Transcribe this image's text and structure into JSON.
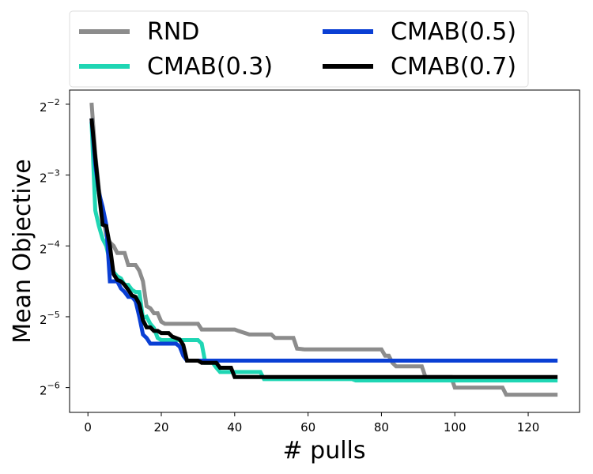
{
  "chart_data": {
    "type": "line",
    "title": "",
    "xlabel": "# pulls",
    "ylabel": "Mean Objective",
    "xlim": [
      -5,
      134
    ],
    "ylim_log2": [
      -6.35,
      -1.8
    ],
    "y_scale": "log2",
    "grid": false,
    "legend_position": "top",
    "x_ticks": [
      0,
      20,
      40,
      60,
      80,
      100,
      120
    ],
    "y_ticks": [
      {
        "base": "2",
        "exp": "−2",
        "log2": -2
      },
      {
        "base": "2",
        "exp": "−3",
        "log2": -3
      },
      {
        "base": "2",
        "exp": "−4",
        "log2": -4
      },
      {
        "base": "2",
        "exp": "−5",
        "log2": -5
      },
      {
        "base": "2",
        "exp": "−6",
        "log2": -6
      }
    ],
    "series": [
      {
        "name": "RND",
        "color": "#8c8c8c",
        "points_log2": [
          [
            1,
            -1.98
          ],
          [
            2,
            -2.7
          ],
          [
            3,
            -3.2
          ],
          [
            4,
            -3.55
          ],
          [
            5,
            -3.85
          ],
          [
            6,
            -3.95
          ],
          [
            7,
            -4.0
          ],
          [
            8,
            -4.1
          ],
          [
            10,
            -4.1
          ],
          [
            11,
            -4.27
          ],
          [
            13,
            -4.27
          ],
          [
            14,
            -4.35
          ],
          [
            15,
            -4.5
          ],
          [
            16,
            -4.85
          ],
          [
            17,
            -4.88
          ],
          [
            18,
            -4.95
          ],
          [
            19,
            -4.95
          ],
          [
            20,
            -5.07
          ],
          [
            21,
            -5.1
          ],
          [
            30,
            -5.1
          ],
          [
            31,
            -5.18
          ],
          [
            40,
            -5.18
          ],
          [
            41,
            -5.2
          ],
          [
            44,
            -5.25
          ],
          [
            50,
            -5.25
          ],
          [
            51,
            -5.3
          ],
          [
            56,
            -5.3
          ],
          [
            57,
            -5.45
          ],
          [
            59,
            -5.46
          ],
          [
            80,
            -5.46
          ],
          [
            81,
            -5.55
          ],
          [
            82,
            -5.55
          ],
          [
            83,
            -5.65
          ],
          [
            84,
            -5.7
          ],
          [
            91,
            -5.7
          ],
          [
            92,
            -5.85
          ],
          [
            99,
            -5.85
          ],
          [
            100,
            -6.0
          ],
          [
            113,
            -6.0
          ],
          [
            114,
            -6.1
          ],
          [
            128,
            -6.1
          ]
        ]
      },
      {
        "name": "CMAB(0.3)",
        "color": "#1fd6b4",
        "points_log2": [
          [
            1,
            -2.25
          ],
          [
            2,
            -3.5
          ],
          [
            3,
            -3.72
          ],
          [
            4,
            -3.9
          ],
          [
            5,
            -4.0
          ],
          [
            6,
            -4.22
          ],
          [
            7,
            -4.37
          ],
          [
            8,
            -4.43
          ],
          [
            9,
            -4.46
          ],
          [
            10,
            -4.55
          ],
          [
            11,
            -4.55
          ],
          [
            12,
            -4.62
          ],
          [
            13,
            -4.65
          ],
          [
            14,
            -4.65
          ],
          [
            15,
            -5.02
          ],
          [
            16,
            -5.0
          ],
          [
            17,
            -5.1
          ],
          [
            18,
            -5.16
          ],
          [
            19,
            -5.3
          ],
          [
            20,
            -5.33
          ],
          [
            30,
            -5.33
          ],
          [
            31,
            -5.38
          ],
          [
            32,
            -5.65
          ],
          [
            34,
            -5.65
          ],
          [
            35,
            -5.72
          ],
          [
            36,
            -5.78
          ],
          [
            47,
            -5.78
          ],
          [
            48,
            -5.88
          ],
          [
            72,
            -5.88
          ],
          [
            73,
            -5.9
          ],
          [
            128,
            -5.9
          ]
        ]
      },
      {
        "name": "CMAB(0.5)",
        "color": "#0a3fd4",
        "points_log2": [
          [
            1,
            -2.2
          ],
          [
            2,
            -2.85
          ],
          [
            3,
            -3.25
          ],
          [
            4,
            -3.45
          ],
          [
            5,
            -3.7
          ],
          [
            6,
            -4.5
          ],
          [
            8,
            -4.5
          ],
          [
            9,
            -4.6
          ],
          [
            10,
            -4.65
          ],
          [
            11,
            -4.72
          ],
          [
            12,
            -4.72
          ],
          [
            13,
            -4.78
          ],
          [
            14,
            -5.0
          ],
          [
            15,
            -5.25
          ],
          [
            16,
            -5.3
          ],
          [
            17,
            -5.38
          ],
          [
            24,
            -5.38
          ],
          [
            25,
            -5.42
          ],
          [
            26,
            -5.55
          ],
          [
            27,
            -5.62
          ],
          [
            128,
            -5.62
          ]
        ]
      },
      {
        "name": "CMAB(0.7)",
        "color": "#000000",
        "points_log2": [
          [
            1,
            -2.2
          ],
          [
            2,
            -2.75
          ],
          [
            3,
            -3.25
          ],
          [
            4,
            -3.7
          ],
          [
            5,
            -3.72
          ],
          [
            6,
            -4.0
          ],
          [
            7,
            -4.4
          ],
          [
            8,
            -4.48
          ],
          [
            9,
            -4.5
          ],
          [
            10,
            -4.55
          ],
          [
            11,
            -4.62
          ],
          [
            12,
            -4.7
          ],
          [
            13,
            -4.72
          ],
          [
            14,
            -4.82
          ],
          [
            15,
            -5.05
          ],
          [
            16,
            -5.15
          ],
          [
            17,
            -5.15
          ],
          [
            18,
            -5.2
          ],
          [
            19,
            -5.2
          ],
          [
            20,
            -5.23
          ],
          [
            22,
            -5.23
          ],
          [
            23,
            -5.28
          ],
          [
            24,
            -5.3
          ],
          [
            25,
            -5.32
          ],
          [
            26,
            -5.4
          ],
          [
            27,
            -5.62
          ],
          [
            30,
            -5.62
          ],
          [
            31,
            -5.65
          ],
          [
            35,
            -5.65
          ],
          [
            36,
            -5.72
          ],
          [
            39,
            -5.72
          ],
          [
            40,
            -5.85
          ],
          [
            41,
            -5.85
          ],
          [
            128,
            -5.85
          ]
        ]
      }
    ]
  }
}
